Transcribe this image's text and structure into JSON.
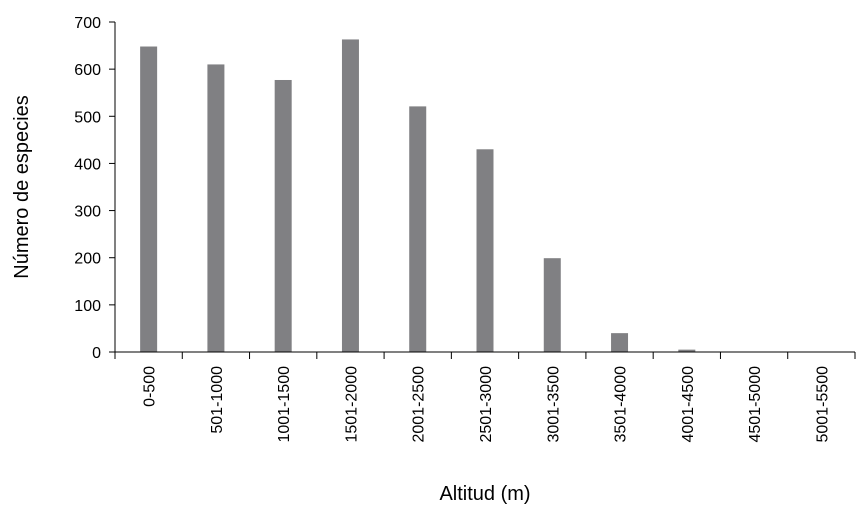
{
  "chart_data": {
    "type": "bar",
    "title": "",
    "xlabel": "Altitud (m)",
    "ylabel": "Número de especies",
    "categories": [
      "0-500",
      "501-1000",
      "1001-1500",
      "1501-2000",
      "2001-2500",
      "2501-3000",
      "3001-3500",
      "3501-4000",
      "4001-4500",
      "4501-5000",
      "5001-5500"
    ],
    "values": [
      648,
      610,
      577,
      663,
      521,
      430,
      199,
      40,
      5,
      0,
      0
    ],
    "ylim": [
      0,
      700
    ],
    "yticks": [
      0,
      100,
      200,
      300,
      400,
      500,
      600,
      700
    ],
    "bar_color": "#808083",
    "grid": false,
    "legend": "none"
  }
}
